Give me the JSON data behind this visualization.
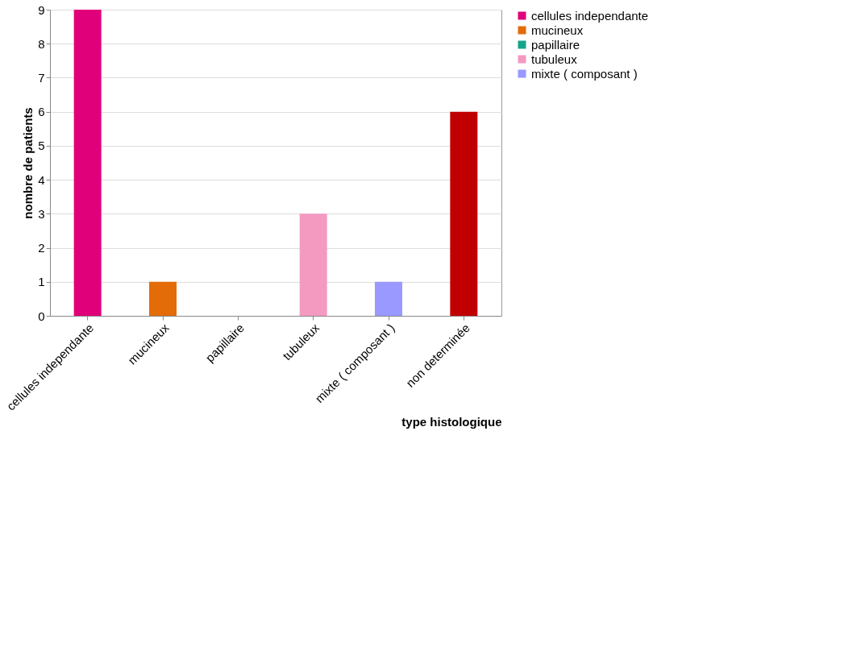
{
  "chart_data": {
    "type": "bar",
    "xlabel": "type histologique",
    "ylabel": "nombre de patients",
    "categories": [
      "cellules independante",
      "mucineux",
      "papillaire",
      "tubuleux",
      "mixte ( composant )",
      "non determinée"
    ],
    "series": [
      {
        "name": "cellules independante",
        "color": "#e0007a",
        "values": [
          9,
          null,
          null,
          null,
          null,
          null
        ]
      },
      {
        "name": "mucineux",
        "color": "#e36c09",
        "values": [
          null,
          1,
          null,
          null,
          null,
          null
        ]
      },
      {
        "name": "papillaire",
        "color": "#17a589",
        "values": [
          null,
          null,
          0,
          null,
          null,
          null
        ]
      },
      {
        "name": "tubuleux",
        "color": "#f49ac1",
        "values": [
          null,
          null,
          null,
          3,
          null,
          null
        ]
      },
      {
        "name": "mixte ( composant )",
        "color": "#9999ff",
        "values": [
          null,
          null,
          null,
          null,
          1,
          null
        ]
      },
      {
        "color": "#c00000",
        "values": [
          null,
          null,
          null,
          null,
          null,
          6
        ]
      }
    ],
    "ylim": [
      0,
      9
    ],
    "yticks": [
      0,
      1,
      2,
      3,
      4,
      5,
      6,
      7,
      8,
      9
    ],
    "grid": "y",
    "legend": "right"
  }
}
